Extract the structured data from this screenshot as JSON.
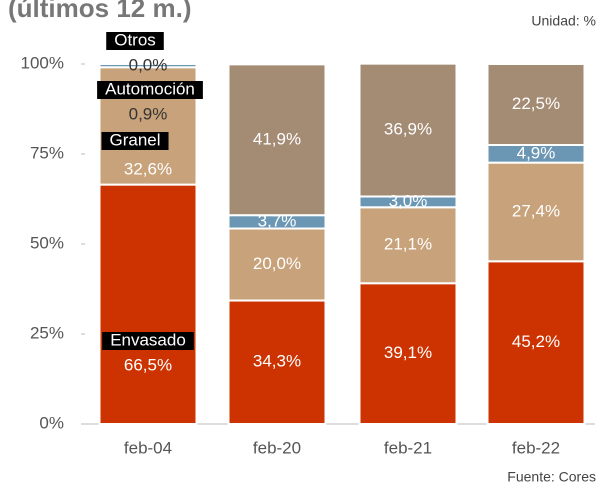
{
  "chart_data": {
    "type": "stacked_bar",
    "title": "(últimos 12 m.)",
    "unit_note": "Unidad: %",
    "source": "Fuente: Cores",
    "categories": [
      "feb-04",
      "feb-20",
      "feb-21",
      "feb-22"
    ],
    "series": [
      {
        "name": "Envasado",
        "color": "#cc3300",
        "values": [
          66.5,
          34.3,
          39.1,
          45.2
        ],
        "value_labels": [
          "66,5%",
          "34,3%",
          "39,1%",
          "45,2%"
        ]
      },
      {
        "name": "Granel",
        "color": "#c8a27a",
        "values": [
          32.6,
          20.0,
          21.1,
          27.4
        ],
        "value_labels": [
          "32,6%",
          "20,0%",
          "21,1%",
          "27,4%"
        ]
      },
      {
        "name": "Automoción",
        "color": "#6b97b4",
        "values": [
          0.9,
          3.7,
          3.0,
          4.9
        ],
        "value_labels": [
          "0,9%",
          "3,7%",
          "3,0%",
          "4,9%"
        ]
      },
      {
        "name": "Otros",
        "color": "#a48b74",
        "values": [
          0.0,
          41.9,
          36.9,
          22.5
        ],
        "value_labels": [
          "0,0%",
          "41,9%",
          "36,9%",
          "22,5%"
        ]
      }
    ],
    "ylim": [
      0,
      100
    ],
    "yticks": [
      {
        "value": 0,
        "label": "0%"
      },
      {
        "value": 25,
        "label": "25%"
      },
      {
        "value": 50,
        "label": "50%"
      },
      {
        "value": 75,
        "label": "75%"
      },
      {
        "value": 100,
        "label": "100%"
      }
    ]
  }
}
